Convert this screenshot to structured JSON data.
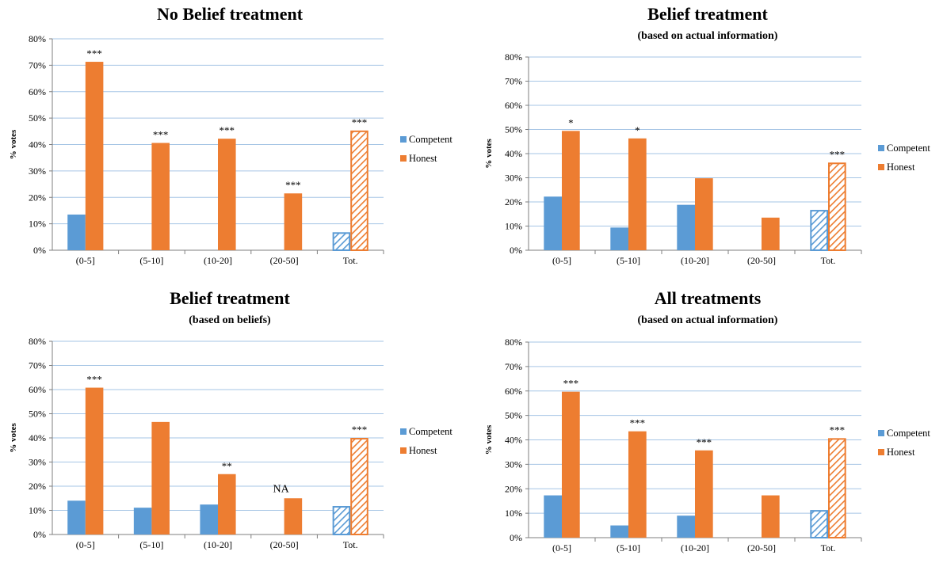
{
  "colors": {
    "competent": "#5B9BD5",
    "honest": "#ED7D31",
    "grid": "#A6C5E5",
    "axis": "#7F7F7F"
  },
  "chart_data": [
    {
      "type": "bar",
      "title": "No Belief treatment",
      "subtitle": "",
      "ylabel": "% votes",
      "ylim": [
        0,
        80
      ],
      "yticks": [
        "0%",
        "10%",
        "20%",
        "30%",
        "40%",
        "50%",
        "60%",
        "70%",
        "80%"
      ],
      "categories": [
        "(0-5]",
        "(5-10]",
        "(10-20]",
        "(20-50]",
        "Tot."
      ],
      "series": [
        {
          "name": "Competent",
          "values": [
            13.5,
            0,
            0,
            0,
            6.8
          ]
        },
        {
          "name": "Honest",
          "values": [
            71.3,
            40.6,
            42.2,
            21.5,
            45.3
          ]
        }
      ],
      "significance": [
        "***",
        "***",
        "***",
        "***",
        "***"
      ],
      "hatched_category": "Tot.",
      "legend": "right"
    },
    {
      "type": "bar",
      "title": "Belief treatment",
      "subtitle": "(based on actual information)",
      "ylabel": "% votes",
      "ylim": [
        0,
        80
      ],
      "yticks": [
        "0%",
        "10%",
        "20%",
        "30%",
        "40%",
        "50%",
        "60%",
        "70%",
        "80%"
      ],
      "categories": [
        "(0-5]",
        "(5-10]",
        "(10-20]",
        "(20-50]",
        "Tot."
      ],
      "series": [
        {
          "name": "Competent",
          "values": [
            22.2,
            9.4,
            18.8,
            0,
            16.7
          ]
        },
        {
          "name": "Honest",
          "values": [
            49.4,
            46.3,
            29.8,
            13.5,
            36.3
          ]
        }
      ],
      "significance": [
        "*",
        "*",
        "",
        "",
        "***"
      ],
      "hatched_category": "Tot.",
      "legend": "right"
    },
    {
      "type": "bar",
      "title": "Belief treatment",
      "subtitle": "(based on beliefs)",
      "ylabel": "% votes",
      "ylim": [
        0,
        80
      ],
      "yticks": [
        "0%",
        "10%",
        "20%",
        "30%",
        "40%",
        "50%",
        "60%",
        "70%",
        "80%"
      ],
      "categories": [
        "(0-5]",
        "(5-10]",
        "(10-20]",
        "(20-50]",
        "Tot."
      ],
      "series": [
        {
          "name": "Competent",
          "values": [
            14.0,
            11.1,
            12.4,
            0,
            11.8
          ]
        },
        {
          "name": "Honest",
          "values": [
            60.8,
            46.6,
            25.0,
            15.0,
            40.0
          ]
        }
      ],
      "significance": [
        "***",
        "",
        "**",
        "NA",
        "***"
      ],
      "hatched_category": "Tot.",
      "legend": "right"
    },
    {
      "type": "bar",
      "title": "All treatments",
      "subtitle": "(based on actual information)",
      "ylabel": "% votes",
      "ylim": [
        0,
        80
      ],
      "yticks": [
        "0%",
        "10%",
        "20%",
        "30%",
        "40%",
        "50%",
        "60%",
        "70%",
        "80%"
      ],
      "categories": [
        "(0-5]",
        "(5-10]",
        "(10-20]",
        "(20-50]",
        "Tot."
      ],
      "series": [
        {
          "name": "Competent",
          "values": [
            17.3,
            5.0,
            9.0,
            0,
            11.3
          ]
        },
        {
          "name": "Honest",
          "values": [
            59.7,
            43.5,
            35.7,
            17.3,
            40.7
          ]
        }
      ],
      "significance": [
        "***",
        "***",
        "***",
        "",
        "***"
      ],
      "hatched_category": "Tot.",
      "legend": "right"
    }
  ]
}
